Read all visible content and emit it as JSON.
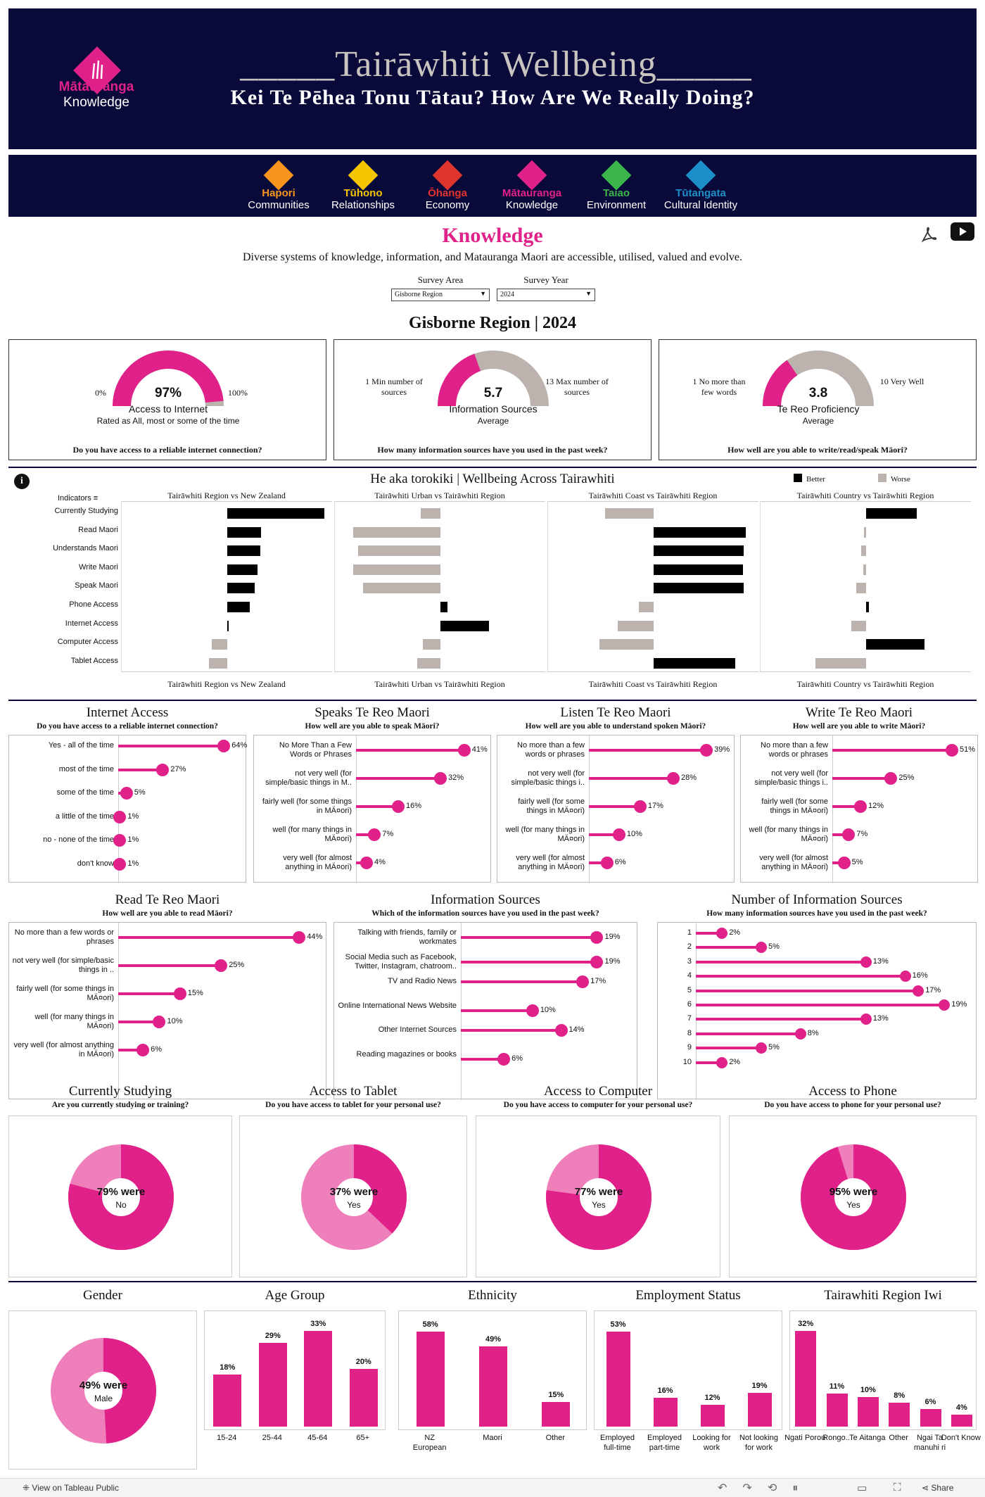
{
  "header": {
    "logo_line1": "Mātauranga",
    "logo_line2": "Knowledge",
    "title": "_____Tairāwhiti Wellbeing_____",
    "subtitle": "Kei Te Pēhea Tonu Tātau? How Are We Really Doing?"
  },
  "nav": [
    {
      "maori": "Hapori",
      "english": "Communities",
      "color": "#f7941d"
    },
    {
      "maori": "Tūhono",
      "english": "Relationships",
      "color": "#f5c400"
    },
    {
      "maori": "Ōhanga",
      "english": "Economy",
      "color": "#e0342f"
    },
    {
      "maori": "Mātauranga",
      "english": "Knowledge",
      "color": "#e0218a"
    },
    {
      "maori": "Taiao",
      "english": "Environment",
      "color": "#3cb54a"
    },
    {
      "maori": "Tūtangata",
      "english": "Cultural Identity",
      "color": "#1d8fc8"
    }
  ],
  "page": {
    "title": "Knowledge",
    "description": "Diverse systems of knowledge, information, and Matauranga Maori are accessible, utilised, valued and evolve.",
    "area_label": "Survey Area",
    "area_value": "Gisborne Region",
    "year_label": "Survey Year",
    "year_value": "2024",
    "heading": "Gisborne Region | 2024"
  },
  "kpi": [
    {
      "min": "0%",
      "max": "100%",
      "value": "97%",
      "fill": 0.97,
      "label": "Access to Internet",
      "sub": "Rated as All, most or some of the time",
      "question": "Do you have access to a reliable internet connection?"
    },
    {
      "min": "1 Min number of sources",
      "max": "13 Max number of sources",
      "value": "5.7",
      "fill": 0.39,
      "label": "Information Sources",
      "sub": "Average",
      "question": "How many information sources have you used in the past week?"
    },
    {
      "min": "1 No more than few words",
      "max": "10 Very Well",
      "value": "3.8",
      "fill": 0.31,
      "label": "Te Reo Proficiency",
      "sub": "Average",
      "question": "How well are you able to write/read/speak Māori?"
    }
  ],
  "indicators": {
    "title": "He aka torokiki | Wellbeing Across Tairawhiti",
    "legend_better": "Better",
    "legend_worse": "Worse",
    "col_header": "Indicators",
    "rows": [
      "Currently Studying",
      "Read Maori",
      "Understands Maori",
      "Write Maori",
      "Speak Maori",
      "Phone Access",
      "Internet Access",
      "Computer Access",
      "Tablet Access"
    ],
    "panels": [
      {
        "title": "Tairāwhiti Region vs New Zealand",
        "values": [
          1.0,
          0.35,
          0.34,
          0.31,
          0.28,
          0.23,
          0.01,
          -0.16,
          -0.19
        ]
      },
      {
        "title": "Tairāwhiti Urban vs Tairāwhiti Region",
        "values": [
          -0.2,
          -0.9,
          -0.85,
          -0.9,
          -0.8,
          0.07,
          0.5,
          -0.18,
          -0.24
        ]
      },
      {
        "title": "Tairāwhiti Coast vs Tairāwhiti Region",
        "values": [
          -0.5,
          0.95,
          0.93,
          0.92,
          0.93,
          -0.15,
          -0.37,
          -0.56,
          0.84
        ]
      },
      {
        "title": "Tairāwhiti Country vs Tairāwhiti Region",
        "values": [
          0.52,
          -0.02,
          -0.05,
          -0.03,
          -0.1,
          0.03,
          -0.15,
          0.6,
          -0.52
        ]
      }
    ]
  },
  "lollipops": [
    {
      "title": "Internet Access",
      "question": "Do you have access to a reliable internet connection?",
      "items": [
        [
          "Yes - all of the time",
          64,
          "64%"
        ],
        [
          "most of the time",
          27,
          "27%"
        ],
        [
          "some of the time",
          5,
          "5%"
        ],
        [
          "a little of the time",
          1,
          "1%"
        ],
        [
          "no - none of the time",
          1,
          "1%"
        ],
        [
          "don't know",
          1,
          "1%"
        ]
      ]
    },
    {
      "title": "Speaks Te Reo Maori",
      "question": "How well are you able to speak Māori?",
      "items": [
        [
          "No More Than a Few Words or Phrases",
          41,
          "41%"
        ],
        [
          "not very well (for simple/basic things in M..",
          32,
          "32%"
        ],
        [
          "fairly well (for some things in MÄ¤ori)",
          16,
          "16%"
        ],
        [
          "well (for many things in MÄ¤ori)",
          7,
          "7%"
        ],
        [
          "very well (for almost anything in MÄ¤ori)",
          4,
          "4%"
        ]
      ]
    },
    {
      "title": "Listen Te Reo Maori",
      "question": "How well are you able to understand spoken Māori?",
      "items": [
        [
          "No more than a few words or phrases",
          39,
          "39%"
        ],
        [
          "not very well (for simple/basic things i..",
          28,
          "28%"
        ],
        [
          "fairly well (for some things in MÄ¤ori)",
          17,
          "17%"
        ],
        [
          "well (for many things in MÄ¤ori)",
          10,
          "10%"
        ],
        [
          "very well (for almost anything in MÄ¤ori)",
          6,
          "6%"
        ]
      ]
    },
    {
      "title": "Write Te Reo Maori",
      "question": "How well are you able to write Māori?",
      "items": [
        [
          "No more than a few words or phrases",
          51,
          "51%"
        ],
        [
          "not very well (for simple/basic things i..",
          25,
          "25%"
        ],
        [
          "fairly well (for some things in MÄ¤ori)",
          12,
          "12%"
        ],
        [
          "well (for many things in MÄ¤ori)",
          7,
          "7%"
        ],
        [
          "very well (for almost anything in MÄ¤ori)",
          5,
          "5%"
        ]
      ]
    },
    {
      "title": "Read Te Reo Maori",
      "question": "How well are you able to read Māori?",
      "items": [
        [
          "No more than a few words or phrases",
          44,
          "44%"
        ],
        [
          "not very well (for simple/basic things in ..",
          25,
          "25%"
        ],
        [
          "fairly well (for some things in MÄ¤ori)",
          15,
          "15%"
        ],
        [
          "well (for many things in MÄ¤ori)",
          10,
          "10%"
        ],
        [
          "very well (for almost anything in MÄ¤ori)",
          6,
          "6%"
        ]
      ]
    },
    {
      "title": "Information Sources",
      "question": "Which of the information sources have you used in the past week?",
      "items": [
        [
          "Talking with friends, family or workmates",
          19,
          "19%"
        ],
        [
          "Social Media such as Facebook, Twitter, Instagram, chatroom..",
          19,
          "19%"
        ],
        [
          "TV and Radio News",
          17,
          "17%"
        ],
        [
          "Online International News Website",
          10,
          "10%"
        ],
        [
          "Other Internet Sources",
          14,
          "14%"
        ],
        [
          "Reading magazines or books",
          6,
          "6%"
        ]
      ]
    }
  ],
  "numsources": {
    "title": "Number of Information Sources",
    "question": "How many information sources have you used in the past week?",
    "items": [
      [
        "1",
        2,
        "2%"
      ],
      [
        "2",
        5,
        "5%"
      ],
      [
        "3",
        13,
        "13%"
      ],
      [
        "4",
        16,
        "16%"
      ],
      [
        "5",
        17,
        "17%"
      ],
      [
        "6",
        19,
        "19%"
      ],
      [
        "7",
        13,
        "13%"
      ],
      [
        "8",
        8,
        "8%"
      ],
      [
        "9",
        5,
        "5%"
      ],
      [
        "10",
        2,
        "2%"
      ]
    ]
  },
  "donuts": [
    {
      "title": "Currently Studying",
      "question": "Are you currently studying or training?",
      "value": "79% were",
      "answer": "No",
      "fill": 0.79
    },
    {
      "title": "Access to Tablet",
      "question": "Do you have access to tablet for your personal use?",
      "value": "37% were",
      "answer": "Yes",
      "fill": 0.37
    },
    {
      "title": "Access to Computer",
      "question": "Do you have access to computer for your personal use?",
      "value": "77% were",
      "answer": "Yes",
      "fill": 0.77
    },
    {
      "title": "Access to Phone",
      "question": "Do you have access to phone for your personal use?",
      "value": "95% were",
      "answer": "Yes",
      "fill": 0.95
    }
  ],
  "demographics": {
    "gender": {
      "title": "Gender",
      "value": "49% were",
      "answer": "Male",
      "fill": 0.49
    },
    "age": {
      "title": "Age Group",
      "items": [
        [
          "15-24",
          18,
          "18%"
        ],
        [
          "25-44",
          29,
          "29%"
        ],
        [
          "45-64",
          33,
          "33%"
        ],
        [
          "65+",
          20,
          "20%"
        ]
      ]
    },
    "ethnicity": {
      "title": "Ethnicity",
      "items": [
        [
          "NZ European",
          58,
          "58%"
        ],
        [
          "Maori",
          49,
          "49%"
        ],
        [
          "Other",
          15,
          "15%"
        ]
      ]
    },
    "employment": {
      "title": "Employment Status",
      "items": [
        [
          "Employed full-time",
          53,
          "53%"
        ],
        [
          "Employed part-time",
          16,
          "16%"
        ],
        [
          "Looking for work",
          12,
          "12%"
        ],
        [
          "Not looking for work",
          19,
          "19%"
        ]
      ]
    },
    "iwi": {
      "title": "Tairawhiti Region Iwi",
      "items": [
        [
          "Ngati Porou",
          32,
          "32%"
        ],
        [
          "Rongo..",
          11,
          "11%"
        ],
        [
          "Te Aitanga",
          10,
          "10%"
        ],
        [
          "Other",
          8,
          "8%"
        ],
        [
          "Ngai Ta manuhi ri",
          6,
          "6%"
        ],
        [
          "Don't Know",
          4,
          "4%"
        ]
      ]
    }
  },
  "footer": {
    "link": "View on Tableau Public",
    "share": "Share"
  }
}
